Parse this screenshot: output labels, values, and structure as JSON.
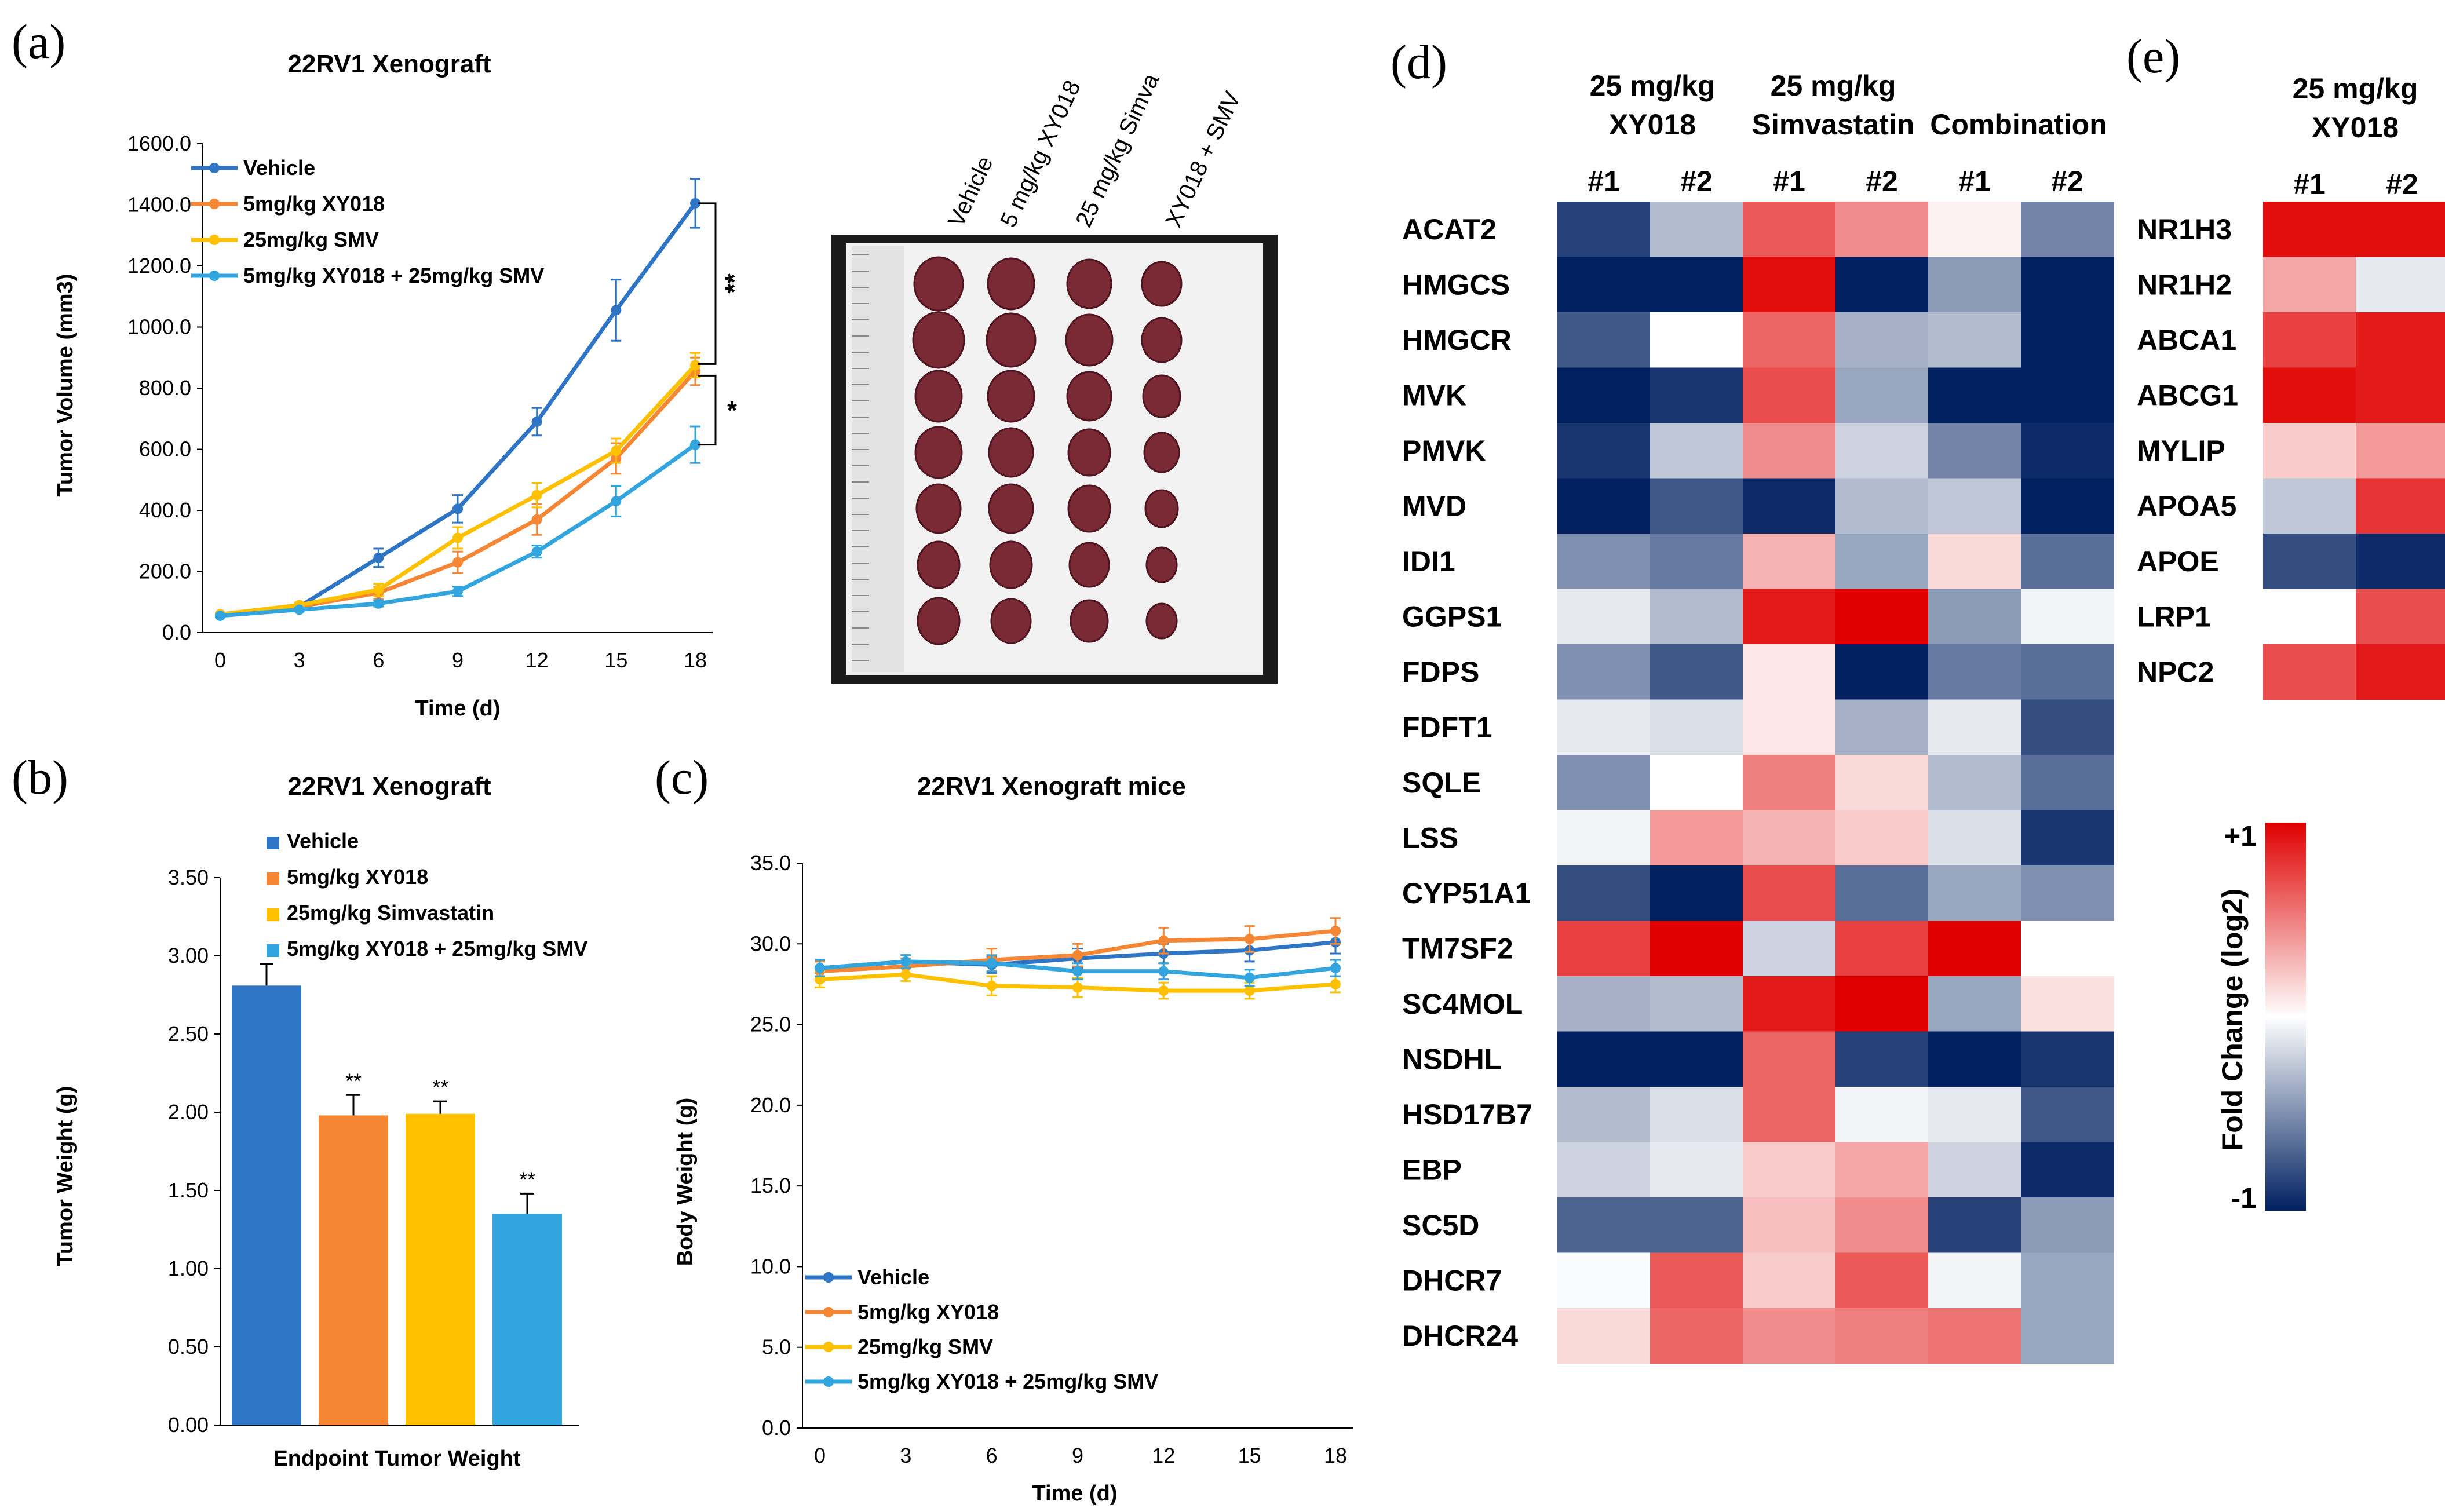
{
  "panels": {
    "a": "(a)",
    "b": "(b)",
    "c": "(c)",
    "d": "(d)",
    "e": "(e)"
  },
  "colors": {
    "vehicle": "#2E75C6",
    "xy018": "#F58634",
    "smv": "#FFC000",
    "combo": "#33A5DE",
    "hm_low": "#002060",
    "hm_mid": "#FFFFFF",
    "hm_high": "#E00000"
  },
  "chart_data": [
    {
      "id": "a",
      "type": "line",
      "title": "22RV1 Xenograft",
      "xlabel": "Time (d)",
      "ylabel": "Tumor Volume (mm3)",
      "x": [
        0,
        3,
        6,
        9,
        12,
        15,
        18
      ],
      "x_tick_labels": [
        "0",
        "3",
        "6",
        "9",
        "12",
        "15",
        "18"
      ],
      "ylim": [
        0,
        1600
      ],
      "y_tick_labels": [
        "0.0",
        "200.0",
        "400.0",
        "600.0",
        "800.0",
        "1000.0",
        "1200.0",
        "1400.0",
        "1600.0"
      ],
      "series": [
        {
          "name": "Vehicle",
          "color": "#2E75C6",
          "values": [
            60,
            85,
            245,
            405,
            690,
            1055,
            1405
          ],
          "errors": [
            5,
            10,
            30,
            45,
            45,
            100,
            80
          ]
        },
        {
          "name": "5mg/kg XY018",
          "color": "#F58634",
          "values": [
            60,
            85,
            130,
            230,
            370,
            570,
            855
          ],
          "errors": [
            5,
            8,
            20,
            35,
            50,
            50,
            45
          ]
        },
        {
          "name": "25mg/kg SMV",
          "color": "#FFC000",
          "values": [
            60,
            90,
            140,
            310,
            450,
            595,
            875
          ],
          "errors": [
            5,
            8,
            20,
            35,
            40,
            40,
            40
          ]
        },
        {
          "name": "5mg/kg XY018 + 25mg/kg SMV",
          "color": "#33A5DE",
          "values": [
            55,
            75,
            95,
            135,
            265,
            430,
            615
          ],
          "errors": [
            5,
            6,
            10,
            15,
            20,
            50,
            60
          ]
        }
      ],
      "significance": [
        "**",
        "*"
      ],
      "legend_position": "top-left"
    },
    {
      "id": "b",
      "type": "bar",
      "title": "22RV1 Xenograft",
      "xlabel": "Endpoint Tumor Weight",
      "ylabel": "Tumor Weight (g)",
      "ylim": [
        0,
        3.5
      ],
      "y_tick_labels": [
        "0.00",
        "0.50",
        "1.00",
        "1.50",
        "2.00",
        "2.50",
        "3.00",
        "3.50"
      ],
      "series": [
        {
          "name": "Vehicle",
          "color": "#2E75C6",
          "value": 2.81,
          "error": 0.14,
          "sig": ""
        },
        {
          "name": "5mg/kg XY018",
          "color": "#F58634",
          "value": 1.98,
          "error": 0.13,
          "sig": "**"
        },
        {
          "name": "25mg/kg Simvastatin",
          "color": "#FFC000",
          "value": 1.99,
          "error": 0.08,
          "sig": "**"
        },
        {
          "name": "5mg/kg XY018 + 25mg/kg SMV",
          "color": "#33A5DE",
          "value": 1.35,
          "error": 0.13,
          "sig": "**"
        }
      ],
      "legend_position": "top-right"
    },
    {
      "id": "c",
      "type": "line",
      "title": "22RV1 Xenograft mice",
      "xlabel": "Time (d)",
      "ylabel": "Body Weight (g)",
      "x": [
        0,
        3,
        6,
        9,
        12,
        15,
        18
      ],
      "x_tick_labels": [
        "0",
        "3",
        "6",
        "9",
        "12",
        "15",
        "18"
      ],
      "ylim": [
        0,
        35
      ],
      "y_tick_labels": [
        "0.0",
        "5.0",
        "10.0",
        "15.0",
        "20.0",
        "25.0",
        "30.0",
        "35.0"
      ],
      "series": [
        {
          "name": "Vehicle",
          "color": "#2E75C6",
          "values": [
            28.5,
            28.9,
            28.7,
            29.1,
            29.4,
            29.6,
            30.1
          ],
          "errors": [
            0.5,
            0.4,
            0.5,
            0.6,
            0.6,
            0.7,
            0.7
          ]
        },
        {
          "name": "5mg/kg XY018",
          "color": "#F58634",
          "values": [
            28.3,
            28.6,
            29.0,
            29.3,
            30.2,
            30.3,
            30.8
          ],
          "errors": [
            0.6,
            0.5,
            0.7,
            0.7,
            0.8,
            0.8,
            0.8
          ]
        },
        {
          "name": "25mg/kg SMV",
          "color": "#FFC000",
          "values": [
            27.8,
            28.1,
            27.4,
            27.3,
            27.1,
            27.1,
            27.5
          ],
          "errors": [
            0.5,
            0.4,
            0.6,
            0.6,
            0.5,
            0.5,
            0.5
          ]
        },
        {
          "name": "5mg/kg XY018 + 25mg/kg SMV",
          "color": "#33A5DE",
          "values": [
            28.5,
            28.9,
            28.8,
            28.3,
            28.3,
            27.9,
            28.5
          ],
          "errors": [
            0.5,
            0.4,
            0.5,
            0.5,
            0.5,
            0.5,
            0.5
          ]
        }
      ],
      "legend_position": "bottom-left"
    },
    {
      "id": "d",
      "type": "heatmap",
      "group_labels": [
        [
          "25 mg/kg",
          "XY018"
        ],
        [
          "25 mg/kg",
          "Simvastatin"
        ],
        [
          "Combination"
        ]
      ],
      "columns": [
        "#1",
        "#2",
        "#1",
        "#2",
        "#1",
        "#2"
      ],
      "rows": [
        "ACAT2",
        "HMGCS",
        "HMGCR",
        "MVK",
        "PMVK",
        "MVD",
        "IDI1",
        "GGPS1",
        "FDPS",
        "FDFT1",
        "SQLE",
        "LSS",
        "CYP51A1",
        "TM7SF2",
        "SC4MOL",
        "NSDHL",
        "HSD17B7",
        "EBP",
        "SC5D",
        "DHCR7",
        "DHCR24"
      ],
      "values": [
        [
          -0.85,
          -0.3,
          0.65,
          0.45,
          0.05,
          -0.55
        ],
        [
          -1,
          -1,
          0.95,
          -1,
          -0.45,
          -1
        ],
        [
          -0.75,
          0,
          0.6,
          -0.35,
          -0.3,
          -1
        ],
        [
          -1,
          -0.9,
          0.7,
          -0.4,
          -1,
          -1
        ],
        [
          -0.9,
          -0.25,
          0.45,
          -0.2,
          -0.55,
          -0.95
        ],
        [
          -1,
          -0.75,
          -0.95,
          -0.3,
          -0.25,
          -1
        ],
        [
          -0.5,
          -0.6,
          0.3,
          -0.4,
          0.15,
          -0.65
        ],
        [
          -0.1,
          -0.3,
          0.9,
          1,
          -0.45,
          -0.05
        ],
        [
          -0.5,
          -0.75,
          0.1,
          -1,
          -0.6,
          -0.65
        ],
        [
          -0.1,
          -0.15,
          0.1,
          -0.35,
          -0.1,
          -0.8
        ],
        [
          -0.5,
          0,
          0.5,
          0.15,
          -0.3,
          -0.65
        ],
        [
          -0.05,
          0.4,
          0.3,
          0.2,
          -0.15,
          -0.9
        ],
        [
          -0.8,
          -1,
          0.7,
          -0.65,
          -0.4,
          -0.5
        ],
        [
          0.75,
          1,
          -0.2,
          0.75,
          1,
          0
        ],
        [
          -0.35,
          -0.3,
          0.9,
          1,
          -0.4,
          0.12
        ],
        [
          -1,
          -1,
          0.6,
          -0.85,
          -1,
          -0.9
        ],
        [
          -0.3,
          -0.15,
          0.6,
          -0.05,
          -0.1,
          -0.75
        ],
        [
          -0.2,
          -0.1,
          0.2,
          0.35,
          -0.2,
          -0.95
        ],
        [
          -0.7,
          -0.7,
          0.25,
          0.45,
          -0.85,
          -0.45
        ],
        [
          -0.02,
          0.65,
          0.2,
          0.65,
          -0.05,
          -0.4
        ],
        [
          0.15,
          0.6,
          0.45,
          0.5,
          0.55,
          -0.4
        ]
      ]
    },
    {
      "id": "e",
      "type": "heatmap",
      "group_labels": [
        [
          "25 mg/kg",
          "XY018"
        ]
      ],
      "columns": [
        "#1",
        "#2"
      ],
      "rows": [
        "NR1H3",
        "NR1H2",
        "ABCA1",
        "ABCG1",
        "MYLIP",
        "APOA5",
        "APOE",
        "LRP1",
        "NPC2"
      ],
      "values": [
        [
          0.95,
          0.95
        ],
        [
          0.35,
          -0.1
        ],
        [
          0.75,
          0.9
        ],
        [
          0.95,
          0.9
        ],
        [
          0.2,
          0.4
        ],
        [
          -0.25,
          0.8
        ],
        [
          -0.8,
          -0.95
        ],
        [
          0,
          0.7
        ],
        [
          0.7,
          0.9
        ]
      ]
    }
  ],
  "colorbar": {
    "max_label": "+1",
    "min_label": "-1",
    "label": "Fold Change (log2)"
  },
  "photo": {
    "labels": [
      "Vehicle",
      "5 mg/kg XY018",
      "25 mg/kg Simva",
      "XY018 + SMV"
    ],
    "rows": 7
  }
}
